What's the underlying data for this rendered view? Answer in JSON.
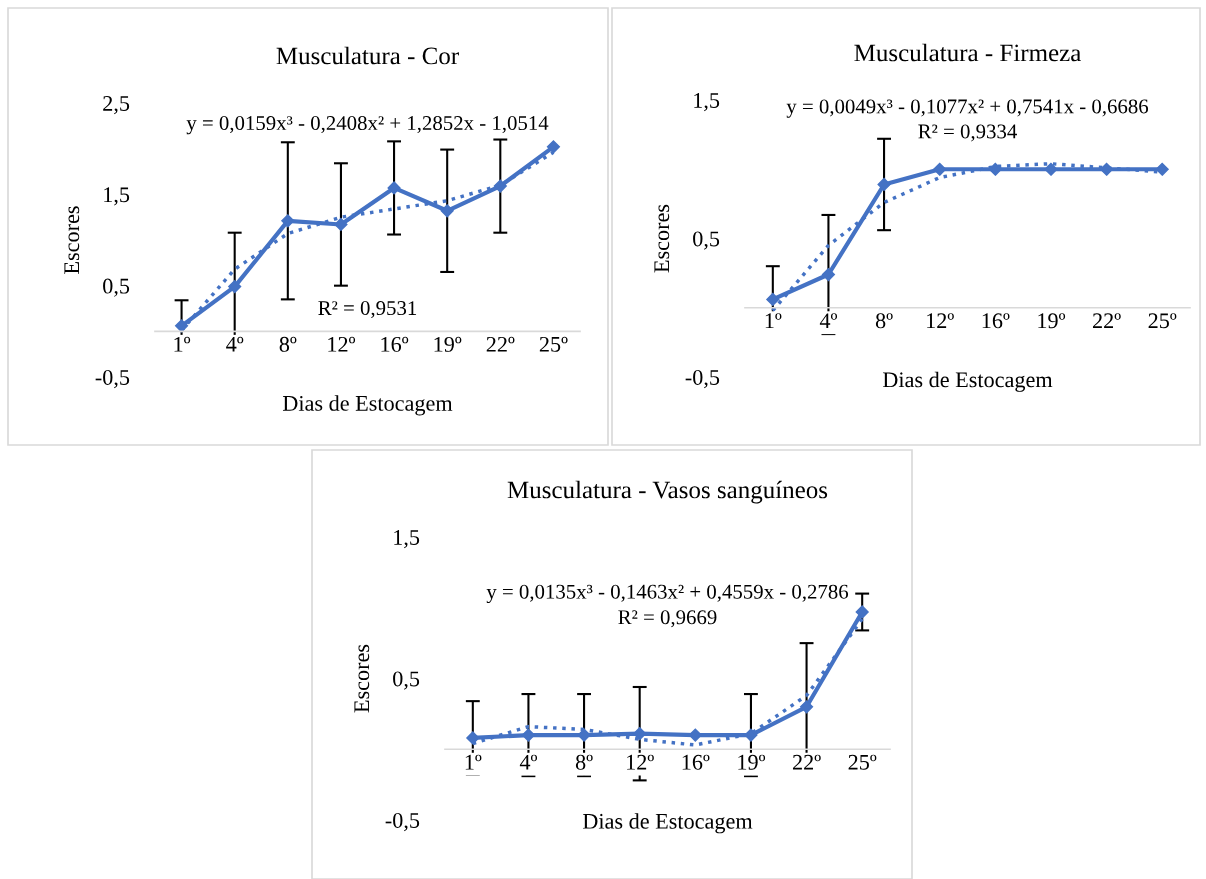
{
  "chart_data": [
    {
      "type": "line",
      "title": "Musculatura - Cor",
      "xlabel": "Dias de Estocagem",
      "ylabel": "Escores",
      "categories": [
        "1º",
        "4º",
        "8º",
        "12º",
        "16º",
        "19º",
        "22º",
        "25º"
      ],
      "series": [
        {
          "color": "#4472c4",
          "marker": "diamond",
          "line_style": "solid",
          "values": [
            0.06,
            0.49,
            1.21,
            1.17,
            1.57,
            1.32,
            1.59,
            2.02
          ],
          "errors": [
            0.28,
            0.59,
            0.86,
            0.67,
            0.51,
            0.67,
            0.51,
            null
          ]
        },
        {
          "type": "line",
          "color": "#4472c4",
          "marker": "none",
          "line_style": "dotted",
          "values": [
            0.01,
            0.68,
            1.07,
            1.25,
            1.34,
            1.43,
            1.6,
            1.96
          ]
        }
      ],
      "ylim": [
        -0.5,
        2.5
      ],
      "yticks": [
        {
          "value": -0.5,
          "label": "-0,5"
        },
        {
          "value": 0.5,
          "label": "0,5"
        },
        {
          "value": 1.5,
          "label": "1,5"
        },
        {
          "value": 2.5,
          "label": "2,5"
        }
      ],
      "grid": false,
      "legend": false,
      "annotations": [
        "y = 0,0159x³ - 0,2408x² + 1,2852x - 1,0514",
        "R² = 0,9531"
      ]
    },
    {
      "type": "line",
      "title": "Musculatura - Firmeza",
      "xlabel": "Dias de Estocagem",
      "ylabel": "Escores",
      "categories": [
        "1º",
        "4º",
        "8º",
        "12º",
        "16º",
        "19º",
        "22º",
        "25º"
      ],
      "series": [
        {
          "color": "#4472c4",
          "marker": "diamond",
          "line_style": "solid",
          "values": [
            0.06,
            0.24,
            0.89,
            1.0,
            1.0,
            1.0,
            1.0,
            1.0
          ],
          "errors": [
            0.24,
            0.43,
            0.33,
            null,
            null,
            null,
            null,
            null
          ]
        },
        {
          "type": "line",
          "color": "#4472c4",
          "marker": "none",
          "line_style": "dotted",
          "values": [
            -0.02,
            0.45,
            0.76,
            0.94,
            1.02,
            1.04,
            1.01,
            0.98
          ]
        }
      ],
      "ylim": [
        -0.5,
        1.5
      ],
      "yticks": [
        {
          "value": -0.5,
          "label": "-0,5"
        },
        {
          "value": 0.5,
          "label": "0,5"
        },
        {
          "value": 1.5,
          "label": "1,5"
        }
      ],
      "grid": false,
      "legend": false,
      "annotations": [
        "y = 0,0049x³ - 0,1077x² + 0,7541x - 0,6686",
        "R² = 0,9334"
      ]
    },
    {
      "type": "line",
      "title": "Musculatura - Vasos sanguíneos",
      "xlabel": "Dias de Estocagem",
      "ylabel": "Escores",
      "categories": [
        "1º",
        "4º",
        "8º",
        "12º",
        "16º",
        "19º",
        "22º",
        "25º"
      ],
      "series": [
        {
          "color": "#4472c4",
          "marker": "diamond",
          "line_style": "solid",
          "values": [
            0.08,
            0.1,
            0.1,
            0.11,
            0.1,
            0.1,
            0.3,
            0.97
          ],
          "errors": [
            0.26,
            0.29,
            0.29,
            0.33,
            null,
            0.29,
            0.45,
            0.13
          ]
        },
        {
          "type": "line",
          "color": "#4472c4",
          "marker": "none",
          "line_style": "dotted",
          "values": [
            0.04,
            0.16,
            0.14,
            0.07,
            0.03,
            0.11,
            0.38,
            0.92
          ]
        }
      ],
      "ylim": [
        -0.5,
        1.5
      ],
      "yticks": [
        {
          "value": -0.5,
          "label": "-0,5"
        },
        {
          "value": 0.5,
          "label": "0,5"
        },
        {
          "value": 1.5,
          "label": "1,5"
        }
      ],
      "grid": false,
      "legend": false,
      "annotations": [
        "y = 0,0135x³ - 0,1463x² + 0,4559x - 0,2786",
        "R² = 0,9669"
      ]
    }
  ]
}
